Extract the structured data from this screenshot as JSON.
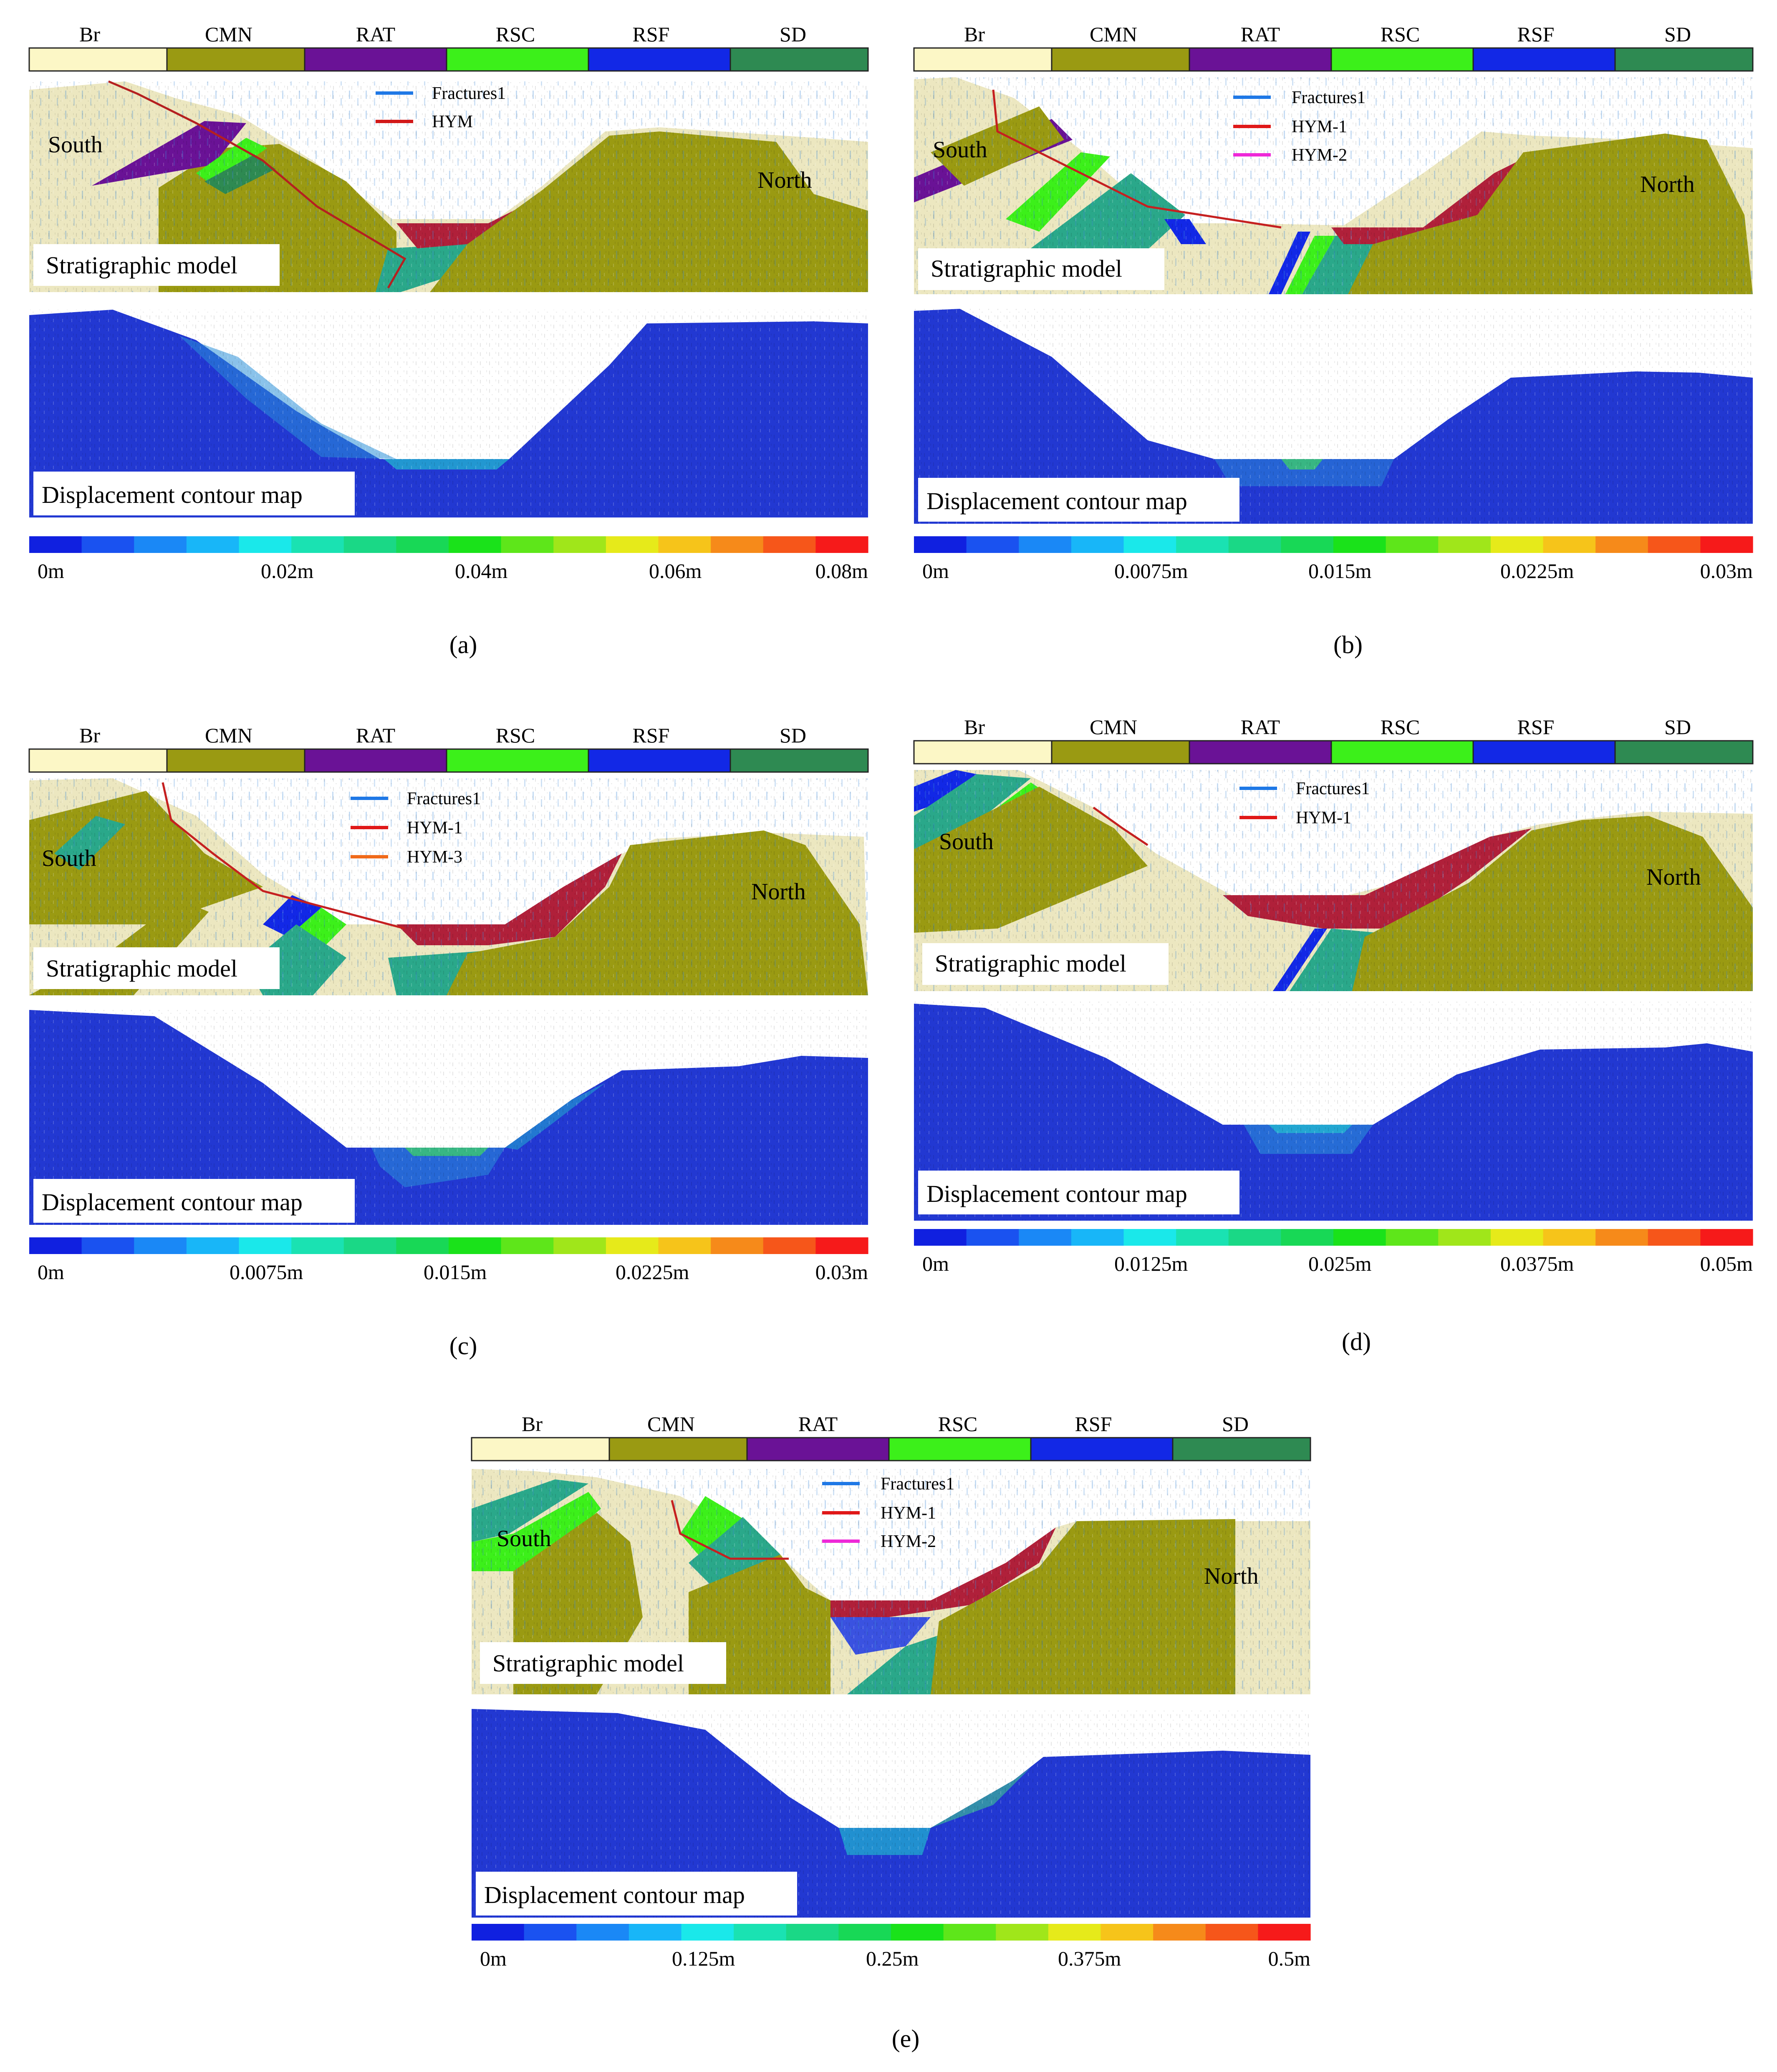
{
  "strata_legend": [
    {
      "label": "Br",
      "color": "#fcf7c6"
    },
    {
      "label": "CMN",
      "color": "#9a9a12"
    },
    {
      "label": "RAT",
      "color": "#6a1296"
    },
    {
      "label": "RSC",
      "color": "#3cf01a"
    },
    {
      "label": "RSF",
      "color": "#1228e6"
    },
    {
      "label": "SD",
      "color": "#2e8a52"
    }
  ],
  "colorscale": [
    "#1020e0",
    "#1a52f0",
    "#1a88f6",
    "#18b6f8",
    "#1ae8ea",
    "#1ae2b2",
    "#1ad886",
    "#18d856",
    "#1ae21a",
    "#5ee61a",
    "#a0e61a",
    "#e6ea1a",
    "#f6c41a",
    "#f68a1a",
    "#f6561a",
    "#f61a1a"
  ],
  "common_labels": {
    "strat_title": "Stratigraphic model",
    "disp_title": "Displacement contour map",
    "south": "South",
    "north": "North"
  },
  "panels": [
    {
      "id": "a",
      "caption": "(a)",
      "south": "South",
      "north": "North",
      "fault_legend": [
        {
          "label": "Fractures1",
          "color": "#1e78e6"
        },
        {
          "label": "HYM",
          "color": "#d21818"
        }
      ],
      "scale_ticks": [
        "0m",
        "0.02m",
        "0.04m",
        "0.06m",
        "0.08m"
      ]
    },
    {
      "id": "b",
      "caption": "(b)",
      "south": "South",
      "north": "North",
      "fault_legend": [
        {
          "label": "Fractures1",
          "color": "#1e78e6"
        },
        {
          "label": "HYM-1",
          "color": "#e01818"
        },
        {
          "label": "HYM-2",
          "color": "#ee28d8"
        }
      ],
      "scale_ticks": [
        "0m",
        "0.0075m",
        "0.015m",
        "0.0225m",
        "0.03m"
      ]
    },
    {
      "id": "c",
      "caption": "(c)",
      "south": "South",
      "north": "North",
      "fault_legend": [
        {
          "label": "Fractures1",
          "color": "#1e78e6"
        },
        {
          "label": "HYM-1",
          "color": "#e01818"
        },
        {
          "label": "HYM-3",
          "color": "#f06a1a"
        }
      ],
      "scale_ticks": [
        "0m",
        "0.0075m",
        "0.015m",
        "0.0225m",
        "0.03m"
      ]
    },
    {
      "id": "d",
      "caption": "(d)",
      "south": "South",
      "north": "North",
      "fault_legend": [
        {
          "label": "Fractures1",
          "color": "#1e78e6"
        },
        {
          "label": "HYM-1",
          "color": "#e01818"
        }
      ],
      "scale_ticks": [
        "0m",
        "0.0125m",
        "0.025m",
        "0.0375m",
        "0.05m"
      ]
    },
    {
      "id": "e",
      "caption": "(e)",
      "south": "South",
      "north": "North",
      "fault_legend": [
        {
          "label": "Fractures1",
          "color": "#1e78e6"
        },
        {
          "label": "HYM-1",
          "color": "#e01818"
        },
        {
          "label": "HYM-2",
          "color": "#ee28d8"
        }
      ],
      "scale_ticks": [
        "0m",
        "0.125m",
        "0.25m",
        "0.375m",
        "0.5m"
      ]
    }
  ]
}
